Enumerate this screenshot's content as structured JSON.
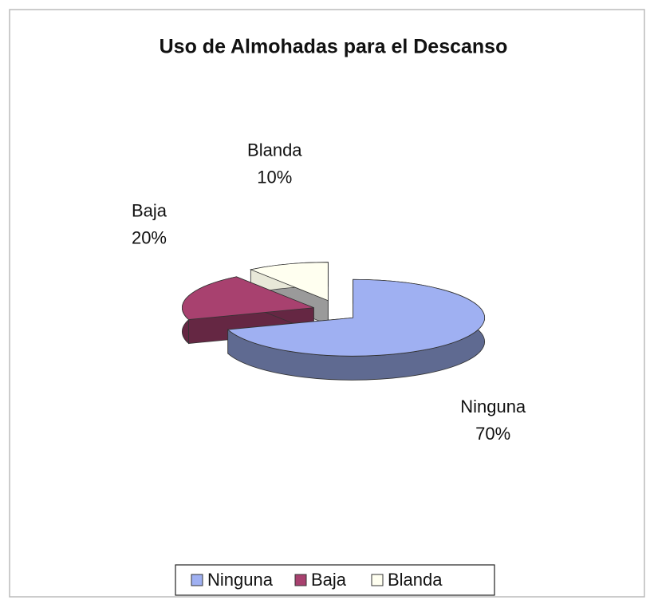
{
  "chart_data": {
    "type": "pie3d",
    "title": "Uso de Almohadas para el Descanso",
    "categories": [
      "Ninguna",
      "Baja",
      "Blanda"
    ],
    "values": [
      70,
      20,
      10
    ],
    "value_labels": [
      "70%",
      "20%",
      "10%"
    ],
    "colors": [
      "#9fb0f2",
      "#a8416f",
      "#fffff0"
    ],
    "legend": "bottom"
  }
}
